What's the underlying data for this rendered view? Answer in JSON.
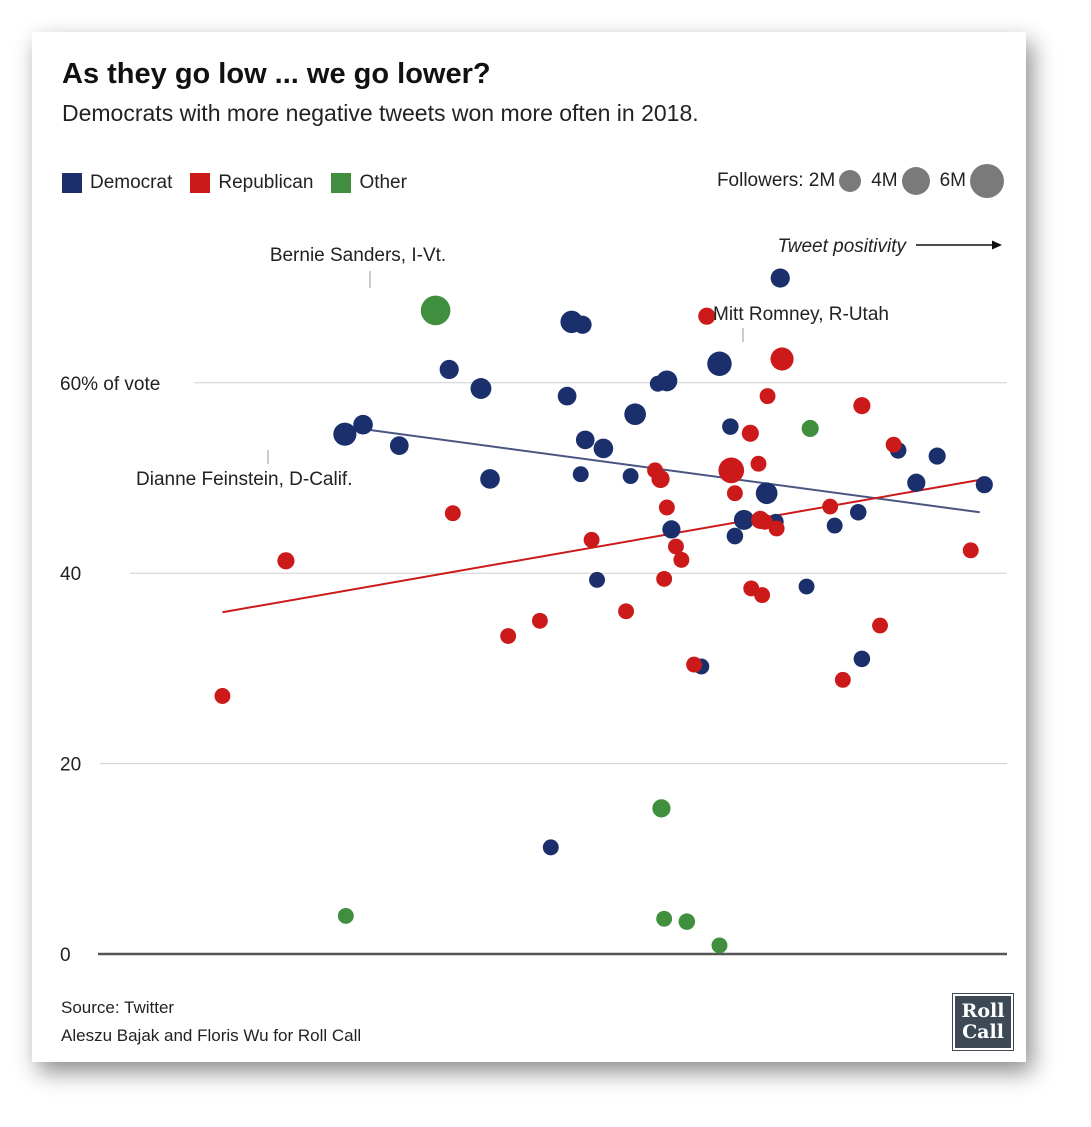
{
  "title": "As they go low ... we go lower?",
  "subtitle": "Democrats with more negative tweets won more often in 2018.",
  "legend": {
    "items": [
      {
        "label": "Democrat",
        "color": "#1a2f6b"
      },
      {
        "label": "Republican",
        "color": "#cc1a1a"
      },
      {
        "label": "Other",
        "color": "#3f8f3f"
      }
    ],
    "followers_label": "Followers: 2M",
    "size_4m": "4M",
    "size_6m": "6M"
  },
  "axis_note": "Tweet positivity",
  "annotations": {
    "sanders": "Bernie Sanders, I-Vt.",
    "romney": "Mitt Romney, R-Utah",
    "feinstein": "Dianne Feinstein, D-Calif."
  },
  "footer": {
    "source": "Source: Twitter",
    "credit": "Aleszu Bajak and Floris Wu for Roll Call"
  },
  "logo": {
    "line1": "Roll",
    "line2": "Call"
  },
  "chart_data": {
    "type": "scatter",
    "ylabel": "",
    "xlabel": "Tweet positivity",
    "ylim": [
      0,
      68
    ],
    "yticks": [
      {
        "value": 60,
        "label": "60% of vote"
      },
      {
        "value": 40,
        "label": "40"
      },
      {
        "value": 20,
        "label": "20"
      },
      {
        "value": 0,
        "label": "0"
      }
    ],
    "colors": {
      "Democrat": "#1a2f6b",
      "Republican": "#cc1a1a",
      "Other": "#3f8f3f"
    },
    "series": [
      {
        "name": "Democrat",
        "points": [
          {
            "x": 27,
            "y": 54.6,
            "size": 2.2,
            "label": "Dianne Feinstein, D-Calif."
          },
          {
            "x": 29,
            "y": 55.6,
            "size": 1.3
          },
          {
            "x": 33,
            "y": 53.4,
            "size": 1.1
          },
          {
            "x": 38.5,
            "y": 61.4,
            "size": 1.2
          },
          {
            "x": 42,
            "y": 59.4,
            "size": 1.6
          },
          {
            "x": 43,
            "y": 49.9,
            "size": 1.3
          },
          {
            "x": 49.7,
            "y": 11.2,
            "size": 0.6
          },
          {
            "x": 51.5,
            "y": 58.6,
            "size": 1.1
          },
          {
            "x": 52,
            "y": 66.4,
            "size": 2.0
          },
          {
            "x": 53,
            "y": 50.4,
            "size": 0.6
          },
          {
            "x": 53.5,
            "y": 54.0,
            "size": 1.1
          },
          {
            "x": 53.2,
            "y": 66.1,
            "size": 1.0
          },
          {
            "x": 54.8,
            "y": 39.3,
            "size": 0.6
          },
          {
            "x": 55.5,
            "y": 53.1,
            "size": 1.3
          },
          {
            "x": 58.5,
            "y": 50.2,
            "size": 0.6
          },
          {
            "x": 59.0,
            "y": 56.7,
            "size": 1.8
          },
          {
            "x": 61.5,
            "y": 59.9,
            "size": 0.6
          },
          {
            "x": 62.5,
            "y": 60.2,
            "size": 1.6
          },
          {
            "x": 63,
            "y": 44.6,
            "size": 1.0
          },
          {
            "x": 66.3,
            "y": 30.2,
            "size": 0.6
          },
          {
            "x": 68.3,
            "y": 62.0,
            "size": 2.6
          },
          {
            "x": 69.5,
            "y": 55.4,
            "size": 0.7
          },
          {
            "x": 70,
            "y": 43.9,
            "size": 0.7
          },
          {
            "x": 71,
            "y": 45.6,
            "size": 1.4
          },
          {
            "x": 73.5,
            "y": 48.4,
            "size": 1.8
          },
          {
            "x": 74.5,
            "y": 45.4,
            "size": 0.6
          },
          {
            "x": 75,
            "y": 71.0,
            "size": 1.2
          },
          {
            "x": 77.9,
            "y": 38.6,
            "size": 0.6
          },
          {
            "x": 81,
            "y": 45.0,
            "size": 0.6
          },
          {
            "x": 83.6,
            "y": 46.4,
            "size": 0.7
          },
          {
            "x": 84,
            "y": 31.0,
            "size": 0.7
          },
          {
            "x": 88,
            "y": 52.9,
            "size": 0.7
          },
          {
            "x": 90,
            "y": 49.5,
            "size": 1.0
          },
          {
            "x": 92.3,
            "y": 52.3,
            "size": 0.8
          },
          {
            "x": 97.5,
            "y": 49.3,
            "size": 0.8
          }
        ]
      },
      {
        "name": "Republican",
        "points": [
          {
            "x": 13.5,
            "y": 27.1,
            "size": 0.6
          },
          {
            "x": 20.5,
            "y": 41.3,
            "size": 0.8
          },
          {
            "x": 38.9,
            "y": 46.3,
            "size": 0.6
          },
          {
            "x": 45,
            "y": 33.4,
            "size": 0.6
          },
          {
            "x": 48.5,
            "y": 35.0,
            "size": 0.6
          },
          {
            "x": 54.2,
            "y": 43.5,
            "size": 0.6
          },
          {
            "x": 58,
            "y": 36.0,
            "size": 0.6
          },
          {
            "x": 61.2,
            "y": 50.8,
            "size": 0.6
          },
          {
            "x": 61.8,
            "y": 49.9,
            "size": 1.0
          },
          {
            "x": 62.2,
            "y": 39.4,
            "size": 0.6
          },
          {
            "x": 62.5,
            "y": 46.9,
            "size": 0.6
          },
          {
            "x": 63.5,
            "y": 42.8,
            "size": 0.6
          },
          {
            "x": 64.1,
            "y": 41.4,
            "size": 0.6
          },
          {
            "x": 65.5,
            "y": 30.4,
            "size": 0.6
          },
          {
            "x": 66.9,
            "y": 67.0,
            "size": 0.8
          },
          {
            "x": 69.6,
            "y": 50.8,
            "size": 3.0
          },
          {
            "x": 70,
            "y": 48.4,
            "size": 0.6
          },
          {
            "x": 71.7,
            "y": 54.7,
            "size": 0.8
          },
          {
            "x": 71.8,
            "y": 38.4,
            "size": 0.6
          },
          {
            "x": 72.6,
            "y": 51.5,
            "size": 0.6
          },
          {
            "x": 72.8,
            "y": 45.6,
            "size": 1.0
          },
          {
            "x": 73.0,
            "y": 37.7,
            "size": 0.6
          },
          {
            "x": 73.3,
            "y": 45.4,
            "size": 0.6
          },
          {
            "x": 73.6,
            "y": 58.6,
            "size": 0.6
          },
          {
            "x": 74.6,
            "y": 44.7,
            "size": 0.6
          },
          {
            "x": 75.2,
            "y": 62.5,
            "size": 2.2
          },
          {
            "x": 80.5,
            "y": 47.0,
            "size": 0.6
          },
          {
            "x": 81.9,
            "y": 28.8,
            "size": 0.6
          },
          {
            "x": 84.0,
            "y": 57.6,
            "size": 0.8
          },
          {
            "x": 86.0,
            "y": 34.5,
            "size": 0.6
          },
          {
            "x": 87.5,
            "y": 53.5,
            "size": 0.6
          },
          {
            "x": 96.0,
            "y": 42.4,
            "size": 0.6
          }
        ]
      },
      {
        "name": "Other",
        "points": [
          {
            "x": 27.1,
            "y": 4.0,
            "size": 0.6
          },
          {
            "x": 37.0,
            "y": 67.6,
            "size": 4.5,
            "label": "Bernie Sanders, I-Vt."
          },
          {
            "x": 61.9,
            "y": 15.3,
            "size": 1.0
          },
          {
            "x": 62.2,
            "y": 3.7,
            "size": 0.6
          },
          {
            "x": 64.7,
            "y": 3.4,
            "size": 0.7
          },
          {
            "x": 68.3,
            "y": 0.9,
            "size": 0.6
          },
          {
            "x": 78.3,
            "y": 55.2,
            "size": 0.8
          }
        ]
      }
    ],
    "trendlines": [
      {
        "name": "Democrat",
        "x": [
          27,
          97
        ],
        "y": [
          55.4,
          46.4
        ]
      },
      {
        "name": "Republican",
        "x": [
          13.5,
          97
        ],
        "y": [
          35.9,
          49.8
        ]
      }
    ]
  }
}
